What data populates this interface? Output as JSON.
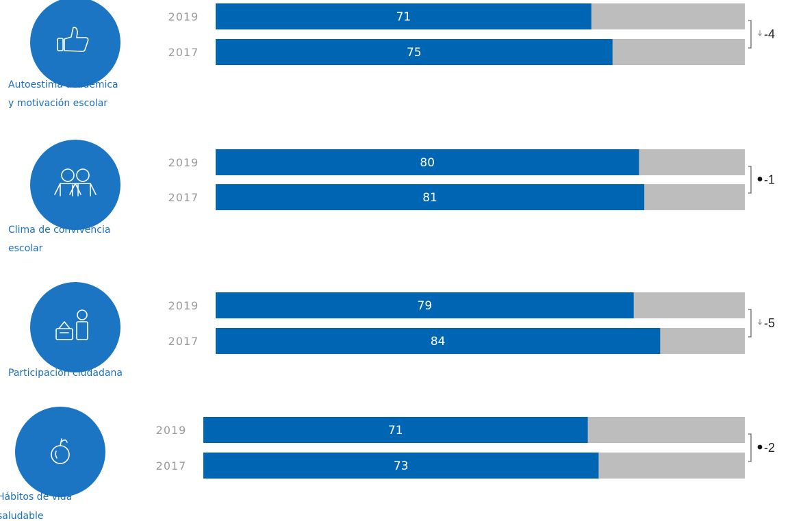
{
  "colors": {
    "bar": "#0066b3",
    "track": "#bdbdbd",
    "circle": "#1b75c2",
    "category_text": "#1a6fbf"
  },
  "chart_data": {
    "type": "bar",
    "orientation": "horizontal",
    "xlim": [
      0,
      100
    ],
    "groups": [
      {
        "label_lines": [
          "Autoestima académica",
          "y motivación escolar"
        ],
        "icon": "thumbs-up-icon",
        "bars": [
          {
            "year": "2019",
            "value": 71
          },
          {
            "year": "2017",
            "value": 75
          }
        ],
        "difference": "-4",
        "difference_marker": "arrow-down"
      },
      {
        "label_lines": [
          "Clima de convivencia",
          "escolar"
        ],
        "icon": "two-people-icon",
        "bars": [
          {
            "year": "2019",
            "value": 80
          },
          {
            "year": "2017",
            "value": 81
          }
        ],
        "difference": "-1",
        "difference_marker": "dot"
      },
      {
        "label_lines": [
          "Participación ciudadana"
        ],
        "icon": "ballot-voting-icon",
        "bars": [
          {
            "year": "2019",
            "value": 79
          },
          {
            "year": "2017",
            "value": 84
          }
        ],
        "difference": "-5",
        "difference_marker": "arrow-down"
      },
      {
        "label_lines": [
          "Hábitos de vida",
          "saludable"
        ],
        "icon": "apple-icon",
        "bars": [
          {
            "year": "2019",
            "value": 71
          },
          {
            "year": "2017",
            "value": 73
          }
        ],
        "difference": "-2",
        "difference_marker": "dot"
      }
    ]
  }
}
